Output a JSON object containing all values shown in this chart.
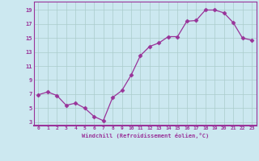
{
  "x": [
    0,
    1,
    2,
    3,
    4,
    5,
    6,
    7,
    8,
    9,
    10,
    11,
    12,
    13,
    14,
    15,
    16,
    17,
    18,
    19,
    20,
    21,
    22,
    23
  ],
  "y": [
    6.9,
    7.3,
    6.8,
    5.4,
    5.7,
    5.0,
    3.8,
    3.2,
    6.5,
    7.5,
    9.7,
    12.5,
    13.8,
    14.3,
    15.2,
    15.2,
    17.4,
    17.5,
    19.0,
    19.0,
    18.6,
    17.2,
    15.0,
    14.7
  ],
  "line_color": "#993399",
  "marker": "D",
  "marker_size": 2.5,
  "bg_color": "#cce8f0",
  "grid_color": "#aacccc",
  "xlabel": "Windchill (Refroidissement éolien,°C)",
  "ylabel_ticks": [
    3,
    5,
    7,
    9,
    11,
    13,
    15,
    17,
    19
  ],
  "xlim": [
    -0.5,
    23.5
  ],
  "ylim": [
    2.5,
    20.2
  ],
  "tick_color": "#993399",
  "label_color": "#993399"
}
